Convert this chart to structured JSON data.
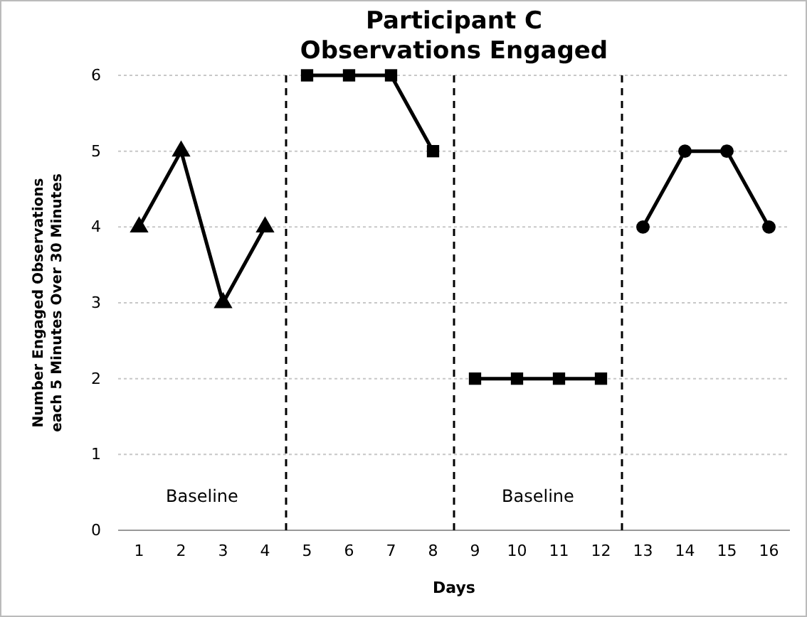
{
  "chart_data": {
    "type": "line",
    "title": "Participant C\nObservations Engaged",
    "xlabel": "Days",
    "ylabel": "Number Engaged Observations\neach 5 Minutes Over 30 Minutes",
    "series": [
      {
        "color": "#000000",
        "marker": "triangle",
        "x": [
          1,
          2,
          3,
          4
        ],
        "values": [
          4,
          5,
          3,
          4
        ]
      },
      {
        "color": "#000000",
        "marker": "square",
        "x": [
          5,
          6,
          7,
          8
        ],
        "values": [
          6,
          6,
          6,
          5
        ]
      },
      {
        "color": "#000000",
        "marker": "square",
        "x": [
          9,
          10,
          11,
          12
        ],
        "values": [
          2,
          2,
          2,
          2
        ]
      },
      {
        "color": "#000000",
        "marker": "circle",
        "x": [
          13,
          14,
          15,
          16
        ],
        "values": [
          4,
          5,
          5,
          4
        ]
      }
    ],
    "xlim": [
      0.5,
      16.5
    ],
    "xticks": [
      1,
      2,
      3,
      4,
      5,
      6,
      7,
      8,
      9,
      10,
      11,
      12,
      13,
      14,
      15,
      16
    ],
    "ylim": [
      0,
      6
    ],
    "yticks": [
      0,
      1,
      2,
      3,
      4,
      5,
      6
    ],
    "grid": "y",
    "line_style": "solid",
    "ref_lines": [
      {
        "axis": "x",
        "value": 4.5,
        "line_style": "dashed",
        "color": "#000000"
      },
      {
        "axis": "x",
        "value": 8.5,
        "line_style": "dashed",
        "color": "#000000"
      },
      {
        "axis": "x",
        "value": 12.5,
        "line_style": "dashed",
        "color": "#000000"
      }
    ],
    "annotations": [
      "Baseline",
      "Baseline"
    ]
  }
}
